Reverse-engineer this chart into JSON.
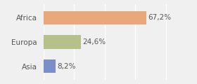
{
  "categories": [
    "Africa",
    "Europa",
    "Asia"
  ],
  "values": [
    67.2,
    24.6,
    8.2
  ],
  "labels": [
    "67,2%",
    "24,6%",
    "8,2%"
  ],
  "bar_colors": [
    "#e8a87c",
    "#b5c08a",
    "#7b8ec8"
  ],
  "background_color": "#f0f0f0",
  "xlim": [
    0,
    85
  ],
  "bar_height": 0.55,
  "label_fontsize": 7.5,
  "category_fontsize": 7.5
}
